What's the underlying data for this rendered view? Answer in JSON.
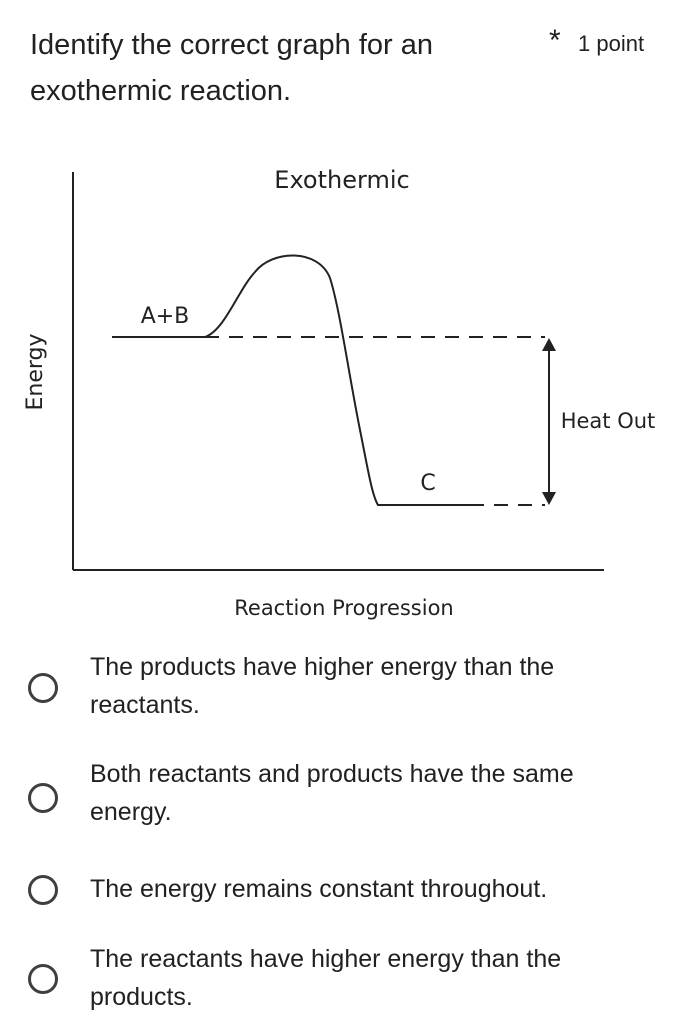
{
  "question": {
    "text": "Identify the correct graph for an exothermic reaction.",
    "required_marker": "*",
    "points": "1 point"
  },
  "figure": {
    "title": "Exothermic",
    "y_axis_label": "Energy",
    "x_axis_label": "Reaction Progression",
    "reactants_label": "A+B",
    "products_label": "C",
    "heat_label": "Heat Out"
  },
  "options": [
    {
      "label": "The products have higher energy than the reactants.",
      "selected": false
    },
    {
      "label": "Both reactants and products have the same energy.",
      "selected": false
    },
    {
      "label": "The energy remains constant throughout.",
      "selected": false
    },
    {
      "label": "The reactants have higher energy than the products.",
      "selected": false
    }
  ]
}
